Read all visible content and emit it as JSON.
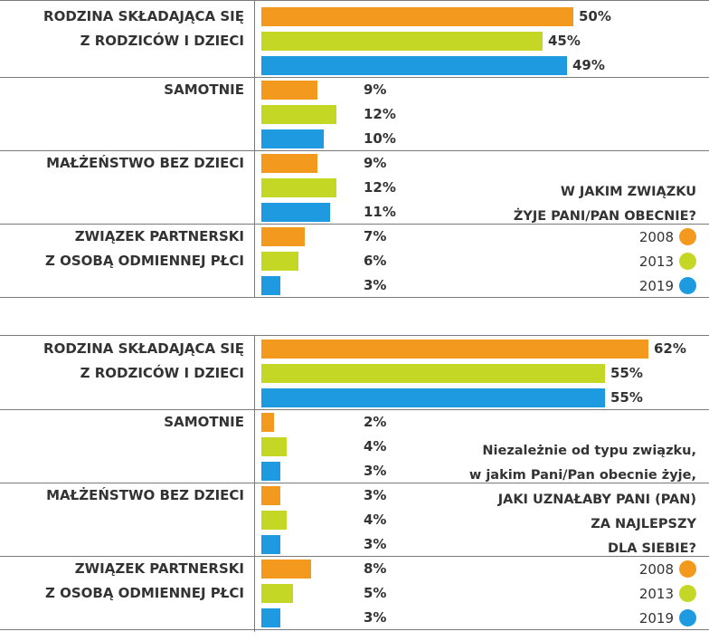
{
  "series": [
    {
      "name": "2008",
      "color": "#f39a1e"
    },
    {
      "name": "2013",
      "color": "#c4d724"
    },
    {
      "name": "2019",
      "color": "#1e9ae0"
    }
  ],
  "chart_data": [
    {
      "type": "bar",
      "question": [
        "W JAKIM ZWIĄZKU",
        "ŻYJE PANI/PAN OBECNIE?"
      ],
      "categories": [
        [
          "RODZINA SKŁADAJĄCA SIĘ",
          "Z RODZICÓW I DZIECI"
        ],
        [
          "SAMOTNIE"
        ],
        [
          "MAŁŻEŃSTWO BEZ DZIECI"
        ],
        [
          "ZWIĄZEK PARTNERSKI",
          "Z OSOBĄ ODMIENNEJ PŁCI"
        ]
      ],
      "series": [
        {
          "name": "2008",
          "values": [
            50,
            9,
            9,
            7
          ]
        },
        {
          "name": "2013",
          "values": [
            45,
            12,
            12,
            6
          ]
        },
        {
          "name": "2019",
          "values": [
            49,
            10,
            11,
            3
          ]
        }
      ],
      "value_labels": [
        [
          "50%",
          "45%",
          "49%"
        ],
        [
          "9%",
          "12%",
          "10%"
        ],
        [
          "9%",
          "12%",
          "11%"
        ],
        [
          "7%",
          "6%",
          "3%"
        ]
      ],
      "unit": "%"
    },
    {
      "type": "bar",
      "question_plain": [
        "Niezależnie od typu związku,",
        "w jakim Pani/Pan obecnie żyje,"
      ],
      "question": [
        "JAKI  UZNAŁABY PANI (PAN)",
        "ZA NAJLEPSZY",
        "DLA SIEBIE?"
      ],
      "categories": [
        [
          "RODZINA SKŁADAJĄCA SIĘ",
          "Z RODZICÓW I DZIECI"
        ],
        [
          "SAMOTNIE"
        ],
        [
          "MAŁŻEŃSTWO BEZ DZIECI"
        ],
        [
          "ZWIĄZEK PARTNERSKI",
          "Z OSOBĄ ODMIENNEJ PŁCI"
        ]
      ],
      "series": [
        {
          "name": "2008",
          "values": [
            62,
            2,
            3,
            8
          ]
        },
        {
          "name": "2013",
          "values": [
            55,
            4,
            4,
            5
          ]
        },
        {
          "name": "2019",
          "values": [
            55,
            3,
            3,
            3
          ]
        }
      ],
      "value_labels": [
        [
          "62%",
          "55%",
          "55%"
        ],
        [
          "2%",
          "4%",
          "3%"
        ],
        [
          "3%",
          "4%",
          "3%"
        ],
        [
          "8%",
          "5%",
          "3%"
        ]
      ],
      "unit": "%"
    }
  ]
}
